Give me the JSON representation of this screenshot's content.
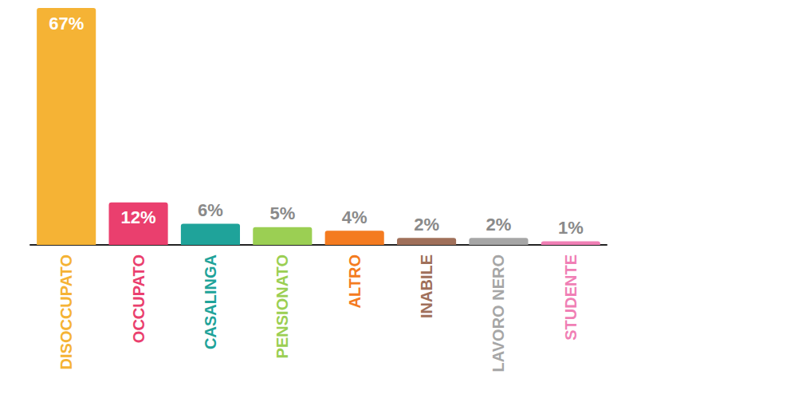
{
  "chart_data": {
    "type": "bar",
    "categories": [
      "DISOCCUPATO",
      "OCCUPATO",
      "CASALINGA",
      "PENSIONATO",
      "ALTRO",
      "INABILE",
      "LAVORO NERO",
      "STUDENTE"
    ],
    "values": [
      67,
      12,
      6,
      5,
      4,
      2,
      2,
      1
    ],
    "value_labels": [
      "67%",
      "12%",
      "6%",
      "5%",
      "4%",
      "2%",
      "2%",
      "1%"
    ],
    "colors": [
      "#f5b335",
      "#ea3f6e",
      "#1fa39a",
      "#9bcf53",
      "#f47b20",
      "#a0705a",
      "#a6a6a6",
      "#f07fb5"
    ],
    "ylim": [
      0,
      67
    ],
    "grid": false,
    "data_labels": true,
    "tick_labels": "x"
  }
}
